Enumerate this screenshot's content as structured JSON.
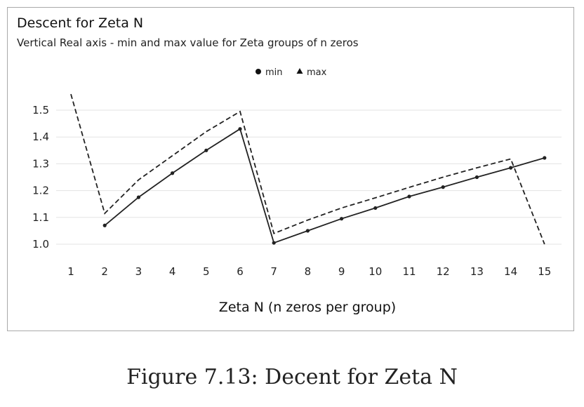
{
  "chart_data": {
    "type": "line",
    "title": "Descent for Zeta N",
    "subtitle": "Vertical Real axis - min and max value for Zeta groups of n zeros",
    "xlabel": "Zeta N (n zeros per group)",
    "ylabel": "",
    "categories": [
      "1",
      "2",
      "3",
      "4",
      "5",
      "6",
      "7",
      "8",
      "9",
      "10",
      "11",
      "12",
      "13",
      "14",
      "15"
    ],
    "ylim": [
      1.0,
      1.5
    ],
    "yticks": [
      "1.0",
      "1.1",
      "1.2",
      "1.3",
      "1.4",
      "1.5"
    ],
    "grid": true,
    "legend_position": "top-center",
    "series": [
      {
        "name": "min",
        "marker": "circle",
        "line_style": "solid",
        "color": "#222222",
        "values": [
          null,
          1.07,
          1.175,
          1.265,
          1.35,
          1.43,
          1.005,
          1.05,
          1.095,
          1.135,
          1.178,
          1.213,
          1.25,
          1.285,
          1.322
        ]
      },
      {
        "name": "max",
        "marker": "triangle",
        "line_style": "dashed",
        "color": "#222222",
        "values": [
          1.56,
          1.115,
          1.24,
          1.33,
          1.42,
          1.495,
          1.04,
          1.09,
          1.135,
          1.173,
          1.212,
          1.25,
          1.285,
          1.318,
          1.0
        ]
      }
    ]
  },
  "caption": "Figure 7.13: Decent for Zeta N"
}
